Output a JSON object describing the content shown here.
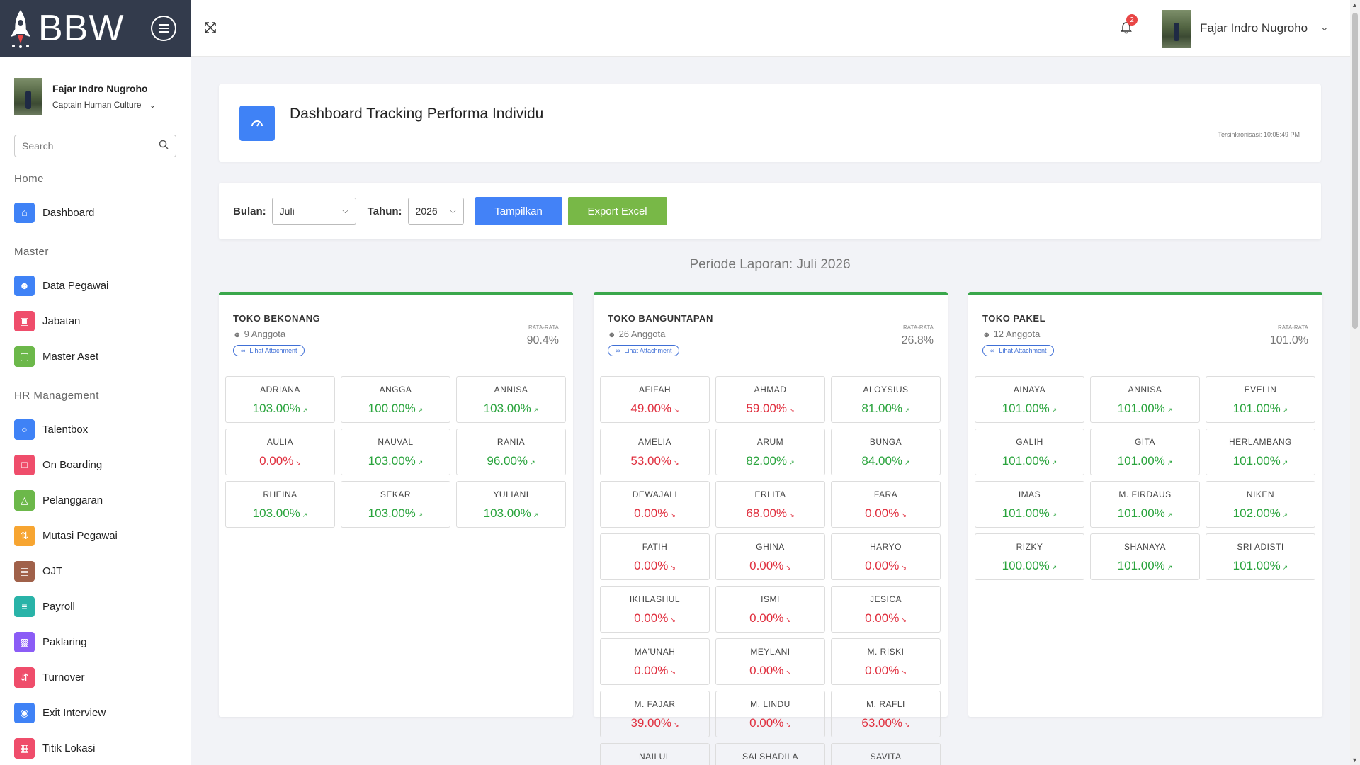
{
  "app": {
    "brand": "BBW"
  },
  "user": {
    "name": "Fajar Indro Nugroho",
    "role": "Captain Human Culture"
  },
  "search": {
    "placeholder": "Search"
  },
  "sidebar": {
    "sections": [
      {
        "title": "Home",
        "items": [
          {
            "label": "Dashboard",
            "icon": "home-icon",
            "color": "#3f82f6"
          }
        ]
      },
      {
        "title": "Master",
        "items": [
          {
            "label": "Data Pegawai",
            "icon": "user-icon",
            "color": "#3f82f6"
          },
          {
            "label": "Jabatan",
            "icon": "briefcase-icon",
            "color": "#ef4d6b"
          },
          {
            "label": "Master Aset",
            "icon": "box-icon",
            "color": "#6cb84a"
          }
        ]
      },
      {
        "title": "HR Management",
        "items": [
          {
            "label": "Talentbox",
            "icon": "bulb-icon",
            "color": "#3f82f6"
          },
          {
            "label": "On Boarding",
            "icon": "clipboard-icon",
            "color": "#ef4d6b"
          },
          {
            "label": "Pelanggaran",
            "icon": "warning-icon",
            "color": "#6cb84a"
          },
          {
            "label": "Mutasi Pegawai",
            "icon": "transfer-icon",
            "color": "#f7a531"
          },
          {
            "label": "OJT",
            "icon": "book-icon",
            "color": "#a0614a"
          },
          {
            "label": "Payroll",
            "icon": "receipt-icon",
            "color": "#29b3a8"
          },
          {
            "label": "Paklaring",
            "icon": "archive-icon",
            "color": "#8b5cf6"
          },
          {
            "label": "Turnover",
            "icon": "swap-icon",
            "color": "#ef4d6b"
          },
          {
            "label": "Exit Interview",
            "icon": "chat-icon",
            "color": "#3f82f6"
          },
          {
            "label": "Titik Lokasi",
            "icon": "map-icon",
            "color": "#ef4d6b"
          }
        ]
      }
    ]
  },
  "topbar": {
    "notification_count": "2",
    "user_name": "Fajar Indro Nugroho"
  },
  "page": {
    "title": "Dashboard Tracking Performa Individu",
    "sync": "Tersinkronisasi: 10:05:49 PM",
    "filter": {
      "bulan_label": "Bulan:",
      "bulan_value": "Juli",
      "tahun_label": "Tahun:",
      "tahun_value": "2026",
      "show_button": "Tampilkan",
      "export_button": "Export Excel"
    },
    "periode": "Periode Laporan: Juli 2026"
  },
  "colors": {
    "up": "#2aa43d",
    "down": "#e0303f",
    "accent": "#3f82f6",
    "store_border": "#3aa74b"
  },
  "stores": [
    {
      "name": "TOKO BEKONANG",
      "count": "9 Anggota",
      "attachment": "Lihat Attachment",
      "rata_label": "RATA-RATA",
      "rata_value": "90.4%",
      "members": [
        {
          "name": "ADRIANA",
          "value": "103.00%",
          "trend": "up"
        },
        {
          "name": "ANGGA",
          "value": "100.00%",
          "trend": "up"
        },
        {
          "name": "ANNISA",
          "value": "103.00%",
          "trend": "up"
        },
        {
          "name": "AULIA",
          "value": "0.00%",
          "trend": "down"
        },
        {
          "name": "NAUVAL",
          "value": "103.00%",
          "trend": "up"
        },
        {
          "name": "RANIA",
          "value": "96.00%",
          "trend": "up"
        },
        {
          "name": "RHEINA",
          "value": "103.00%",
          "trend": "up"
        },
        {
          "name": "SEKAR",
          "value": "103.00%",
          "trend": "up"
        },
        {
          "name": "YULIANI",
          "value": "103.00%",
          "trend": "up"
        }
      ]
    },
    {
      "name": "TOKO BANGUNTAPAN",
      "count": "26 Anggota",
      "attachment": "Lihat Attachment",
      "rata_label": "RATA-RATA",
      "rata_value": "26.8%",
      "members": [
        {
          "name": "AFIFAH",
          "value": "49.00%",
          "trend": "down"
        },
        {
          "name": "AHMAD",
          "value": "59.00%",
          "trend": "down"
        },
        {
          "name": "ALOYSIUS",
          "value": "81.00%",
          "trend": "up"
        },
        {
          "name": "AMELIA",
          "value": "53.00%",
          "trend": "down"
        },
        {
          "name": "ARUM",
          "value": "82.00%",
          "trend": "up"
        },
        {
          "name": "BUNGA",
          "value": "84.00%",
          "trend": "up"
        },
        {
          "name": "DEWAJALI",
          "value": "0.00%",
          "trend": "down"
        },
        {
          "name": "ERLITA",
          "value": "68.00%",
          "trend": "down"
        },
        {
          "name": "FARA",
          "value": "0.00%",
          "trend": "down"
        },
        {
          "name": "FATIH",
          "value": "0.00%",
          "trend": "down"
        },
        {
          "name": "GHINA",
          "value": "0.00%",
          "trend": "down"
        },
        {
          "name": "HARYO",
          "value": "0.00%",
          "trend": "down"
        },
        {
          "name": "IKHLASHUL",
          "value": "0.00%",
          "trend": "down"
        },
        {
          "name": "ISMI",
          "value": "0.00%",
          "trend": "down"
        },
        {
          "name": "JESICA",
          "value": "0.00%",
          "trend": "down"
        },
        {
          "name": "MA'UNAH",
          "value": "0.00%",
          "trend": "down"
        },
        {
          "name": "MEYLANI",
          "value": "0.00%",
          "trend": "down"
        },
        {
          "name": "M. RISKI",
          "value": "0.00%",
          "trend": "down"
        },
        {
          "name": "M. FAJAR",
          "value": "39.00%",
          "trend": "down"
        },
        {
          "name": "M. LINDU",
          "value": "0.00%",
          "trend": "down"
        },
        {
          "name": "M. RAFLI",
          "value": "63.00%",
          "trend": "down"
        },
        {
          "name": "NAILUL",
          "value": "",
          "trend": "down"
        },
        {
          "name": "SALSHADILA",
          "value": "",
          "trend": "down"
        },
        {
          "name": "SAVITA",
          "value": "",
          "trend": "down"
        }
      ]
    },
    {
      "name": "TOKO PAKEL",
      "count": "12 Anggota",
      "attachment": "Lihat Attachment",
      "rata_label": "RATA-RATA",
      "rata_value": "101.0%",
      "members": [
        {
          "name": "AINAYA",
          "value": "101.00%",
          "trend": "up"
        },
        {
          "name": "ANNISA",
          "value": "101.00%",
          "trend": "up"
        },
        {
          "name": "EVELIN",
          "value": "101.00%",
          "trend": "up"
        },
        {
          "name": "GALIH",
          "value": "101.00%",
          "trend": "up"
        },
        {
          "name": "GITA",
          "value": "101.00%",
          "trend": "up"
        },
        {
          "name": "HERLAMBANG",
          "value": "101.00%",
          "trend": "up"
        },
        {
          "name": "IMAS",
          "value": "101.00%",
          "trend": "up"
        },
        {
          "name": "M. FIRDAUS",
          "value": "101.00%",
          "trend": "up"
        },
        {
          "name": "NIKEN",
          "value": "102.00%",
          "trend": "up"
        },
        {
          "name": "RIZKY",
          "value": "100.00%",
          "trend": "up"
        },
        {
          "name": "SHANAYA",
          "value": "101.00%",
          "trend": "up"
        },
        {
          "name": "SRI ADISTI",
          "value": "101.00%",
          "trend": "up"
        }
      ]
    }
  ]
}
